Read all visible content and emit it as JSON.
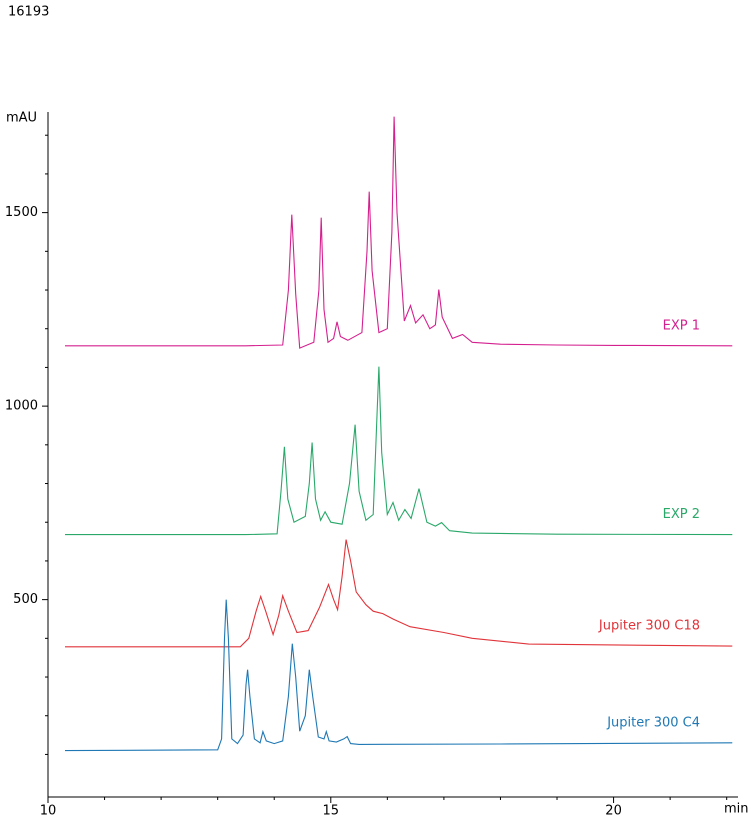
{
  "header": {
    "id": "16193"
  },
  "chart_data": {
    "type": "line",
    "y_label": "mAU",
    "x_label": "min",
    "xlim": [
      10,
      22.2
    ],
    "ylim": [
      -10,
      1760
    ],
    "xticks": [
      10,
      15,
      20
    ],
    "yticks": [
      500,
      1000,
      1500
    ],
    "xminor_ticks": [
      11,
      12,
      13,
      14,
      16,
      17,
      18,
      19,
      21,
      22
    ],
    "yminor_ticks": [
      100,
      200,
      300,
      400,
      600,
      700,
      800,
      900,
      1100,
      1200,
      1300,
      1400,
      1600,
      1700
    ],
    "series": [
      {
        "name": "EXP 1",
        "color": "#d4208f",
        "x": [
          10.3,
          13.5,
          14.15,
          14.25,
          14.31,
          14.38,
          14.45,
          14.7,
          14.79,
          14.83,
          14.88,
          14.95,
          15.05,
          15.11,
          15.17,
          15.3,
          15.55,
          15.64,
          15.68,
          15.73,
          15.85,
          16.0,
          16.08,
          16.12,
          16.17,
          16.3,
          16.41,
          16.5,
          16.63,
          16.75,
          16.85,
          16.91,
          16.97,
          17.15,
          17.33,
          17.5,
          18,
          19,
          20,
          22.1
        ],
        "values": [
          1156,
          1156,
          1158,
          1300,
          1495,
          1290,
          1150,
          1165,
          1300,
          1487,
          1250,
          1165,
          1175,
          1218,
          1180,
          1170,
          1190,
          1400,
          1554,
          1350,
          1190,
          1200,
          1450,
          1748,
          1500,
          1220,
          1260,
          1215,
          1236,
          1200,
          1210,
          1301,
          1230,
          1175,
          1185,
          1165,
          1160,
          1158,
          1157,
          1156
        ]
      },
      {
        "name": "EXP 2",
        "color": "#2aa86a",
        "x": [
          10.3,
          13.5,
          14.05,
          14.12,
          14.18,
          14.24,
          14.35,
          14.55,
          14.62,
          14.67,
          14.73,
          14.82,
          14.9,
          15.0,
          15.2,
          15.33,
          15.43,
          15.5,
          15.62,
          15.75,
          15.81,
          15.85,
          15.9,
          16.0,
          16.1,
          16.2,
          16.31,
          16.42,
          16.56,
          16.7,
          16.85,
          16.96,
          17.1,
          17.5,
          19,
          22.1
        ],
        "values": [
          668,
          668,
          670,
          780,
          895,
          760,
          700,
          715,
          800,
          906,
          760,
          705,
          727,
          700,
          695,
          800,
          952,
          780,
          705,
          720,
          950,
          1102,
          880,
          720,
          751,
          705,
          733,
          710,
          787,
          700,
          690,
          699,
          678,
          672,
          669,
          668
        ]
      },
      {
        "name": "Jupiter 300 C18",
        "color": "#e0343a",
        "x": [
          10.3,
          13.4,
          13.55,
          13.68,
          13.76,
          13.85,
          13.98,
          14.08,
          14.15,
          14.25,
          14.4,
          14.6,
          14.8,
          14.96,
          15.05,
          15.12,
          15.2,
          15.27,
          15.35,
          15.45,
          15.62,
          15.75,
          15.92,
          16.1,
          16.4,
          17,
          17.5,
          18.5,
          22.1
        ],
        "values": [
          378,
          378,
          400,
          470,
          508,
          470,
          410,
          460,
          510,
          470,
          415,
          420,
          480,
          539,
          500,
          474,
          560,
          655,
          600,
          520,
          487,
          470,
          464,
          450,
          430,
          415,
          400,
          385,
          380
        ]
      },
      {
        "name": "Jupiter 300 C4",
        "color": "#1f78b4",
        "x": [
          10.3,
          13.0,
          13.07,
          13.12,
          13.15,
          13.19,
          13.25,
          13.35,
          13.45,
          13.5,
          13.53,
          13.57,
          13.65,
          13.75,
          13.8,
          13.86,
          14.0,
          14.15,
          14.25,
          14.32,
          14.38,
          14.45,
          14.55,
          14.62,
          14.68,
          14.78,
          14.88,
          14.92,
          14.97,
          15.1,
          15.23,
          15.29,
          15.35,
          15.5,
          18,
          22.1
        ],
        "values": [
          110,
          112,
          140,
          400,
          500,
          400,
          140,
          128,
          150,
          280,
          319,
          250,
          140,
          130,
          159,
          135,
          128,
          135,
          250,
          386,
          300,
          160,
          200,
          319,
          250,
          145,
          140,
          159,
          135,
          132,
          140,
          146,
          128,
          126,
          127,
          130
        ]
      }
    ]
  }
}
